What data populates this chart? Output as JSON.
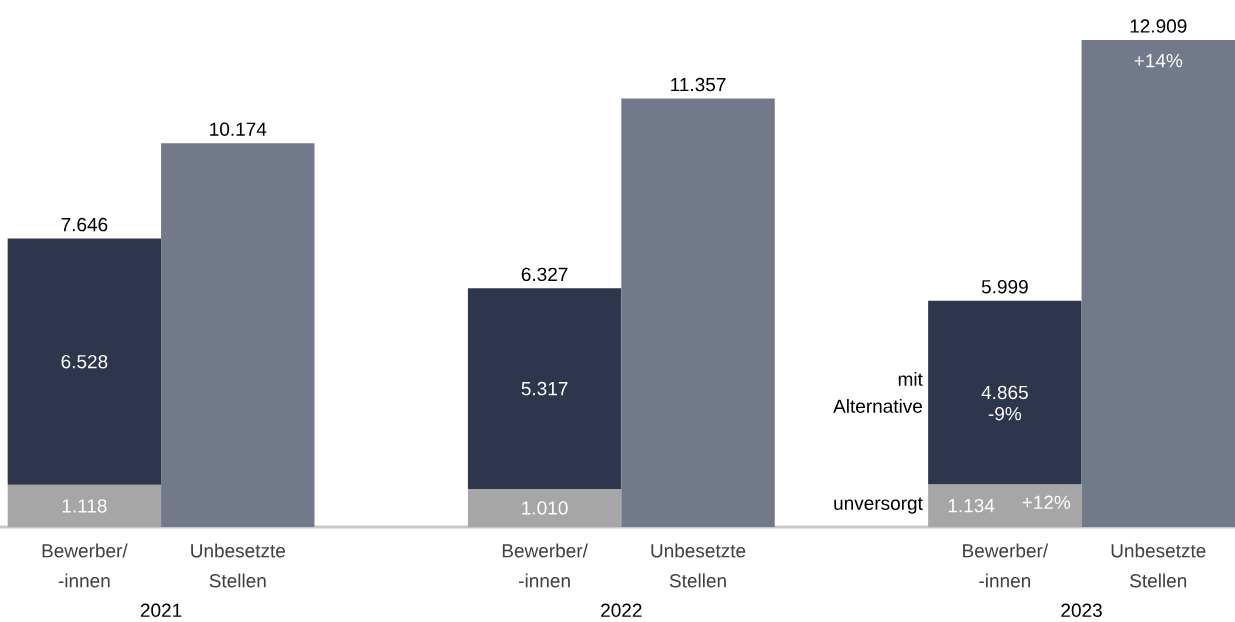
{
  "chart_data": {
    "type": "bar",
    "stacked": true,
    "categories": [
      "Bewerber/ -innen",
      "Unbesetzte Stellen",
      "Bewerber/ -innen",
      "Unbesetzte Stellen",
      "Bewerber/ -innen",
      "Unbesetzte Stellen"
    ],
    "series": [
      {
        "name": "unversorgt",
        "color": "#a6a6a6",
        "values": [
          1118,
          null,
          1010,
          null,
          1134,
          null
        ],
        "value_labels": [
          "1.118",
          null,
          "1.010",
          null,
          "1.134",
          null
        ]
      },
      {
        "name": "mit Alternative",
        "color": "#2e364d",
        "values": [
          6528,
          null,
          5317,
          null,
          4865,
          null
        ],
        "value_labels": [
          "6.528",
          null,
          "5.317",
          null,
          "4.865",
          null
        ]
      },
      {
        "color": "#72798b",
        "values": [
          null,
          10174,
          null,
          11357,
          null,
          12909
        ]
      }
    ],
    "totals": [
      "7.646",
      "10.174",
      "6.327",
      "11.357",
      "5.999",
      "12.909"
    ],
    "annotations": [
      "2021",
      "2022",
      "2023",
      "+12%",
      "-9%",
      "+14%"
    ]
  }
}
